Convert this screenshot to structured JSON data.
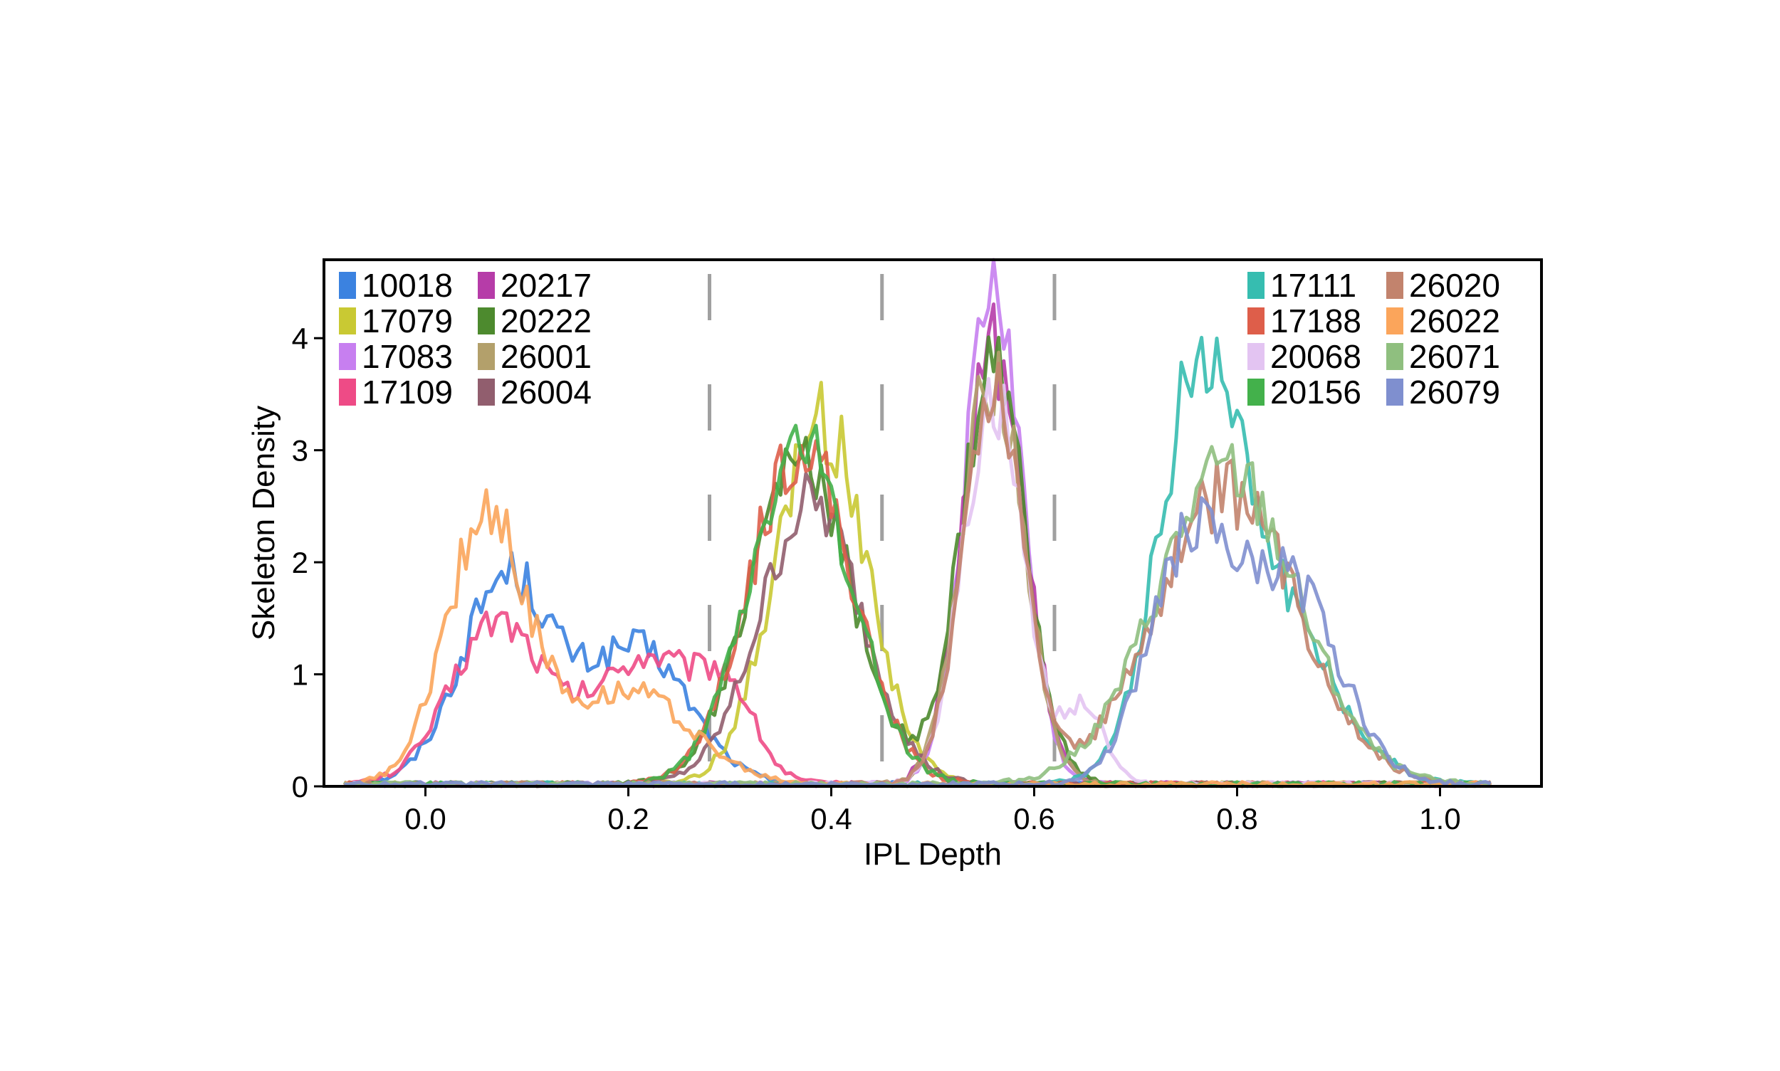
{
  "chart_data": {
    "type": "line",
    "title": "",
    "xlabel": "IPL Depth",
    "ylabel": "Skeleton Density",
    "xlim": [
      -0.1,
      1.1
    ],
    "ylim": [
      0,
      4.7
    ],
    "xticks": [
      "0.0",
      "0.2",
      "0.4",
      "0.6",
      "0.8",
      "1.0"
    ],
    "yticks": [
      "0",
      "1",
      "2",
      "3",
      "4"
    ],
    "grid": false,
    "legend_placement": [
      "top-left",
      "top-right"
    ],
    "boundary_lines_x": [
      0.28,
      0.45,
      0.62
    ],
    "series": [
      {
        "name": "10018",
        "color": "#3b82e0",
        "peaks": [
          [
            0.08,
            1.85,
            0.045
          ],
          [
            0.21,
            1.2,
            0.05
          ]
        ]
      },
      {
        "name": "17079",
        "color": "#c9c933",
        "peaks": [
          [
            0.39,
            3.25,
            0.045
          ]
        ]
      },
      {
        "name": "17083",
        "color": "#c77ff0",
        "peaks": [
          [
            0.56,
            4.5,
            0.028
          ]
        ]
      },
      {
        "name": "17109",
        "color": "#ee4b86",
        "peaks": [
          [
            0.07,
            1.45,
            0.045
          ],
          [
            0.22,
            1.15,
            0.055
          ],
          [
            0.3,
            0.6,
            0.025
          ]
        ]
      },
      {
        "name": "20217",
        "color": "#b63ca8",
        "peaks": [
          [
            0.56,
            3.9,
            0.03
          ]
        ]
      },
      {
        "name": "20222",
        "color": "#4d8a2e",
        "peaks": [
          [
            0.37,
            2.9,
            0.05
          ],
          [
            0.56,
            3.7,
            0.032
          ]
        ]
      },
      {
        "name": "26001",
        "color": "#b3a06b",
        "peaks": [
          [
            0.56,
            3.7,
            0.03
          ]
        ]
      },
      {
        "name": "26004",
        "color": "#915e6e",
        "peaks": [
          [
            0.38,
            2.5,
            0.05
          ]
        ]
      },
      {
        "name": "17111",
        "color": "#36bdb0",
        "peaks": [
          [
            0.76,
            3.0,
            0.04
          ],
          [
            0.83,
            1.6,
            0.06
          ]
        ]
      },
      {
        "name": "17188",
        "color": "#de5e4a",
        "peaks": [
          [
            0.37,
            3.05,
            0.05
          ]
        ]
      },
      {
        "name": "20068",
        "color": "#e3c4f2",
        "peaks": [
          [
            0.56,
            3.4,
            0.03
          ],
          [
            0.65,
            0.7,
            0.02
          ]
        ]
      },
      {
        "name": "20156",
        "color": "#43b14b",
        "peaks": [
          [
            0.37,
            3.0,
            0.05
          ]
        ]
      },
      {
        "name": "26020",
        "color": "#c2836d",
        "peaks": [
          [
            0.56,
            3.5,
            0.03
          ],
          [
            0.79,
            2.6,
            0.07
          ]
        ]
      },
      {
        "name": "26022",
        "color": "#fba55b",
        "peaks": [
          [
            0.06,
            2.35,
            0.04
          ],
          [
            0.2,
            0.85,
            0.06
          ]
        ]
      },
      {
        "name": "26071",
        "color": "#8fbf7f",
        "peaks": [
          [
            0.79,
            2.8,
            0.07
          ]
        ]
      },
      {
        "name": "26079",
        "color": "#7f8fcf",
        "peaks": [
          [
            0.75,
            2.0,
            0.04
          ],
          [
            0.85,
            1.8,
            0.05
          ]
        ]
      }
    ],
    "legend_left": [
      "10018",
      "17079",
      "17083",
      "17109",
      "20217",
      "20222",
      "26001",
      "26004"
    ],
    "legend_right": [
      "17111",
      "17188",
      "20068",
      "20156",
      "26020",
      "26022",
      "26071",
      "26079"
    ]
  }
}
